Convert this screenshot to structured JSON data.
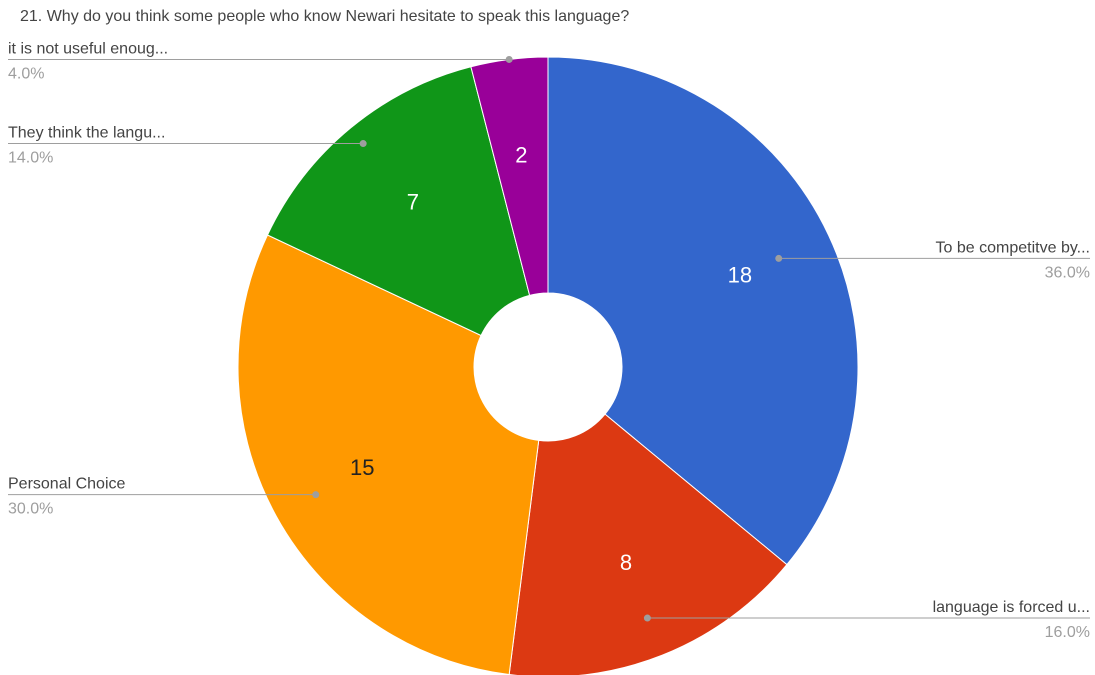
{
  "chart_data": {
    "type": "pie",
    "donut": true,
    "title": "21. Why do you think some people who know Newari hesitate to speak this language?",
    "start_angle_deg": 0,
    "direction": "clockwise",
    "slices": [
      {
        "label": "To be competitve by...",
        "value": 18,
        "percent": "36.0%",
        "color": "#3366cc",
        "text_color": "#ffffff",
        "leader_side": "right"
      },
      {
        "label": "language is forced u...",
        "value": 8,
        "percent": "16.0%",
        "color": "#dc3912",
        "text_color": "#ffffff",
        "leader_side": "right"
      },
      {
        "label": "Personal Choice",
        "value": 15,
        "percent": "30.0%",
        "color": "#ff9900",
        "text_color": "#222222",
        "leader_side": "left"
      },
      {
        "label": "They think the langu...",
        "value": 7,
        "percent": "14.0%",
        "color": "#109618",
        "text_color": "#ffffff",
        "leader_side": "left"
      },
      {
        "label": "it is not useful enoug...",
        "value": 2,
        "percent": "4.0%",
        "color": "#990099",
        "text_color": "#ffffff",
        "leader_side": "left"
      }
    ]
  }
}
